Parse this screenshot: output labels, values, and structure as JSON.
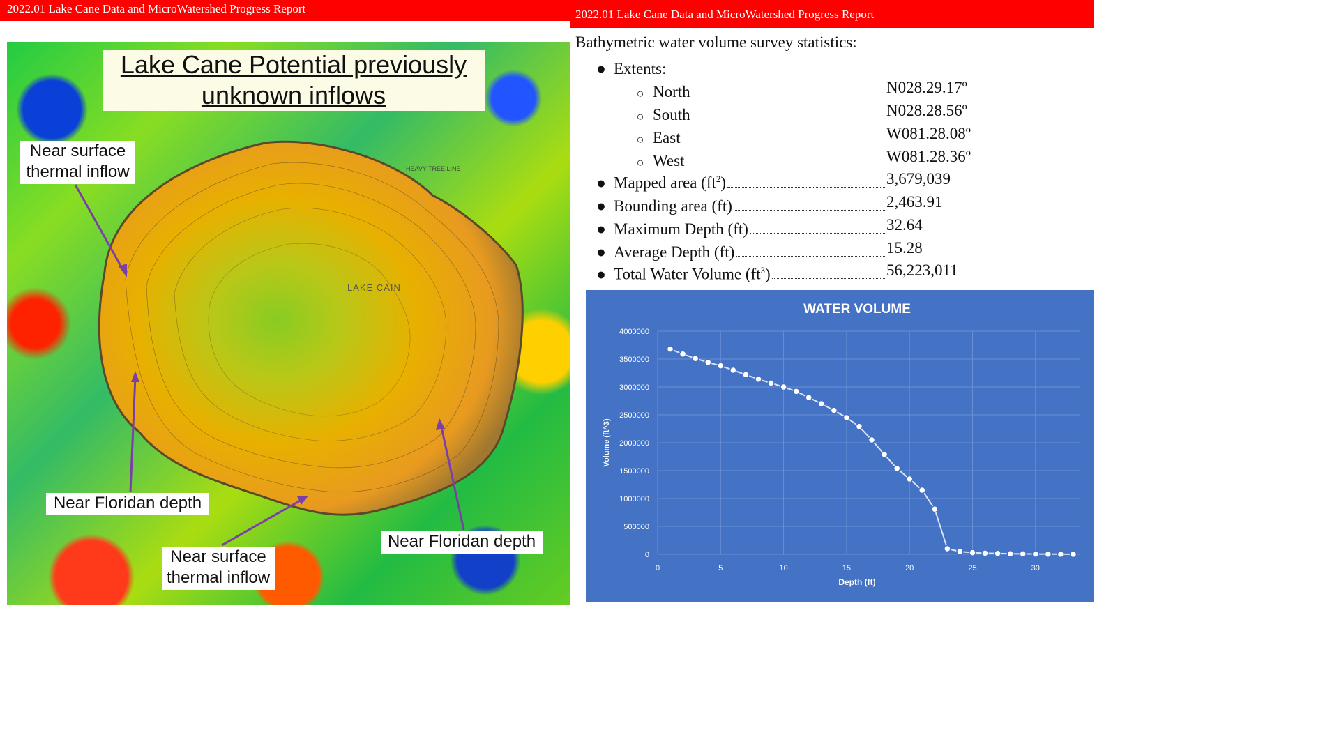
{
  "header": {
    "left_title": "2022.01 Lake Cane Data and MicroWatershed Progress Report",
    "right_title": "2022.01 Lake Cane Data and MicroWatershed Progress Report"
  },
  "map": {
    "title_line1": "Lake Cane Potential  previously",
    "title_line2": "unknown inflows",
    "lake_label": "LAKE CAIN",
    "tree_line_label": "HEAVY TREE LINE",
    "callouts": {
      "nw_line1": "Near surface",
      "nw_line2": "thermal inflow",
      "sw": "Near Floridan depth",
      "s_line1": "Near surface",
      "s_line2": "thermal inflow",
      "se": "Near Floridan depth"
    },
    "colors": {
      "arrow": "#7b3fa8",
      "lake_outline": "#5a4a2a"
    }
  },
  "stats": {
    "heading": "Bathymetric water volume survey statistics:",
    "extents_label": "Extents:",
    "extents": [
      {
        "label": "North",
        "value": "N028.29.17º"
      },
      {
        "label": "South",
        "value": "N028.28.56º"
      },
      {
        "label": "East",
        "value": "W081.28.08º"
      },
      {
        "label": "West",
        "value": "W081.28.36º"
      }
    ],
    "items": [
      {
        "label_pre": "Mapped area (ft",
        "sup": "2",
        "label_post": ")",
        "value": "3,679,039"
      },
      {
        "label_pre": "Bounding area (ft)",
        "sup": "",
        "label_post": "",
        "value": "2,463.91"
      },
      {
        "label_pre": "Maximum Depth (ft)",
        "sup": "",
        "label_post": "",
        "value": "32.64"
      },
      {
        "label_pre": "Average Depth (ft)",
        "sup": "",
        "label_post": "",
        "value": "15.28"
      },
      {
        "label_pre": "Total Water Volume (ft",
        "sup": "3",
        "label_post": ")",
        "value": "56,223,011"
      }
    ]
  },
  "chart_data": {
    "type": "line",
    "title": "WATER VOLUME",
    "xlabel": "Depth (ft)",
    "ylabel": "Volume (ft^3)",
    "xlim": [
      0,
      33.5
    ],
    "ylim": [
      0,
      4000000
    ],
    "xticks": [
      0,
      5,
      10,
      15,
      20,
      25,
      30
    ],
    "yticks": [
      0,
      500000,
      1000000,
      1500000,
      2000000,
      2500000,
      3000000,
      3500000,
      4000000
    ],
    "grid": true,
    "colors": {
      "background": "#4472c4",
      "line": "#dbe4f4",
      "marker_fill": "#ffffff",
      "grid": "#6a8fd6"
    },
    "series": [
      {
        "x": [
          1,
          2,
          3,
          4,
          5,
          6,
          7,
          8,
          9,
          10,
          11,
          12,
          13,
          14,
          15,
          16,
          17,
          18,
          19,
          20,
          21,
          22,
          23,
          24,
          25,
          26,
          27,
          28,
          29,
          30,
          31,
          32,
          33
        ],
        "values": [
          3680000,
          3590000,
          3510000,
          3440000,
          3380000,
          3300000,
          3220000,
          3140000,
          3070000,
          3000000,
          2920000,
          2810000,
          2700000,
          2580000,
          2450000,
          2290000,
          2050000,
          1790000,
          1540000,
          1350000,
          1150000,
          810000,
          100000,
          50000,
          30000,
          20000,
          15000,
          10000,
          8000,
          5000,
          3000,
          2000,
          1000
        ]
      }
    ]
  }
}
